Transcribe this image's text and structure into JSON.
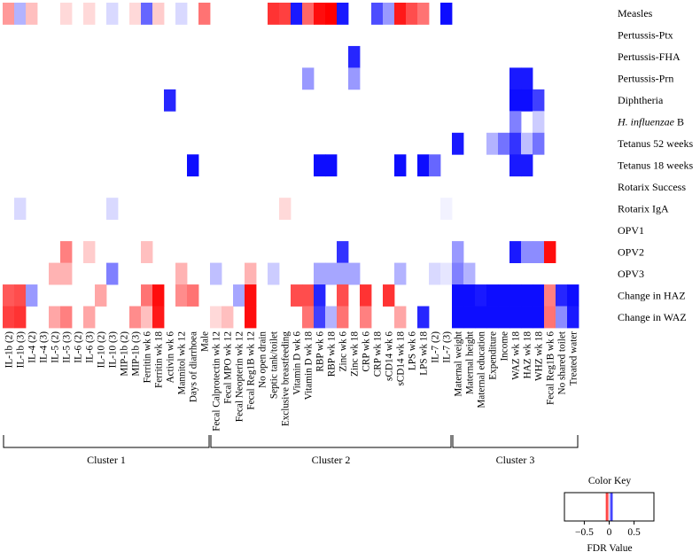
{
  "chart_data": {
    "type": "heatmap",
    "title": "",
    "rows": [
      "Measles",
      "Pertussis-Ptx",
      "Pertussis-FHA",
      "Pertussis-Prn",
      "Diphtheria",
      "H. influenzae B",
      "Tetanus 52 weeks",
      "Tetanus 18 weeks",
      "Rotarix Success",
      "Rotarix IgA",
      "OPV1",
      "OPV2",
      "OPV3",
      "Change in HAZ",
      "Change in WAZ"
    ],
    "row_labels": [
      {
        "text": "Measles",
        "italic": ""
      },
      {
        "text": "Pertussis-Ptx",
        "italic": ""
      },
      {
        "text": "Pertussis-FHA",
        "italic": ""
      },
      {
        "text": "Pertussis-Prn",
        "italic": ""
      },
      {
        "text": "Diphtheria",
        "italic": ""
      },
      {
        "text": " B",
        "italic": "H. influenzae"
      },
      {
        "text": "Tetanus 52 weeks",
        "italic": ""
      },
      {
        "text": "Tetanus 18 weeks",
        "italic": ""
      },
      {
        "text": "Rotarix Success",
        "italic": ""
      },
      {
        "text": "Rotarix IgA",
        "italic": ""
      },
      {
        "text": "OPV1",
        "italic": ""
      },
      {
        "text": "OPV2",
        "italic": ""
      },
      {
        "text": "OPV3",
        "italic": ""
      },
      {
        "text": "Change in HAZ",
        "italic": ""
      },
      {
        "text": "Change in WAZ",
        "italic": ""
      }
    ],
    "columns": [
      "IL-1b (2)",
      "IL-1b (3)",
      "IL-4 (2)",
      "IL-4 (3)",
      "IL-5 (2)",
      "IL-5 (3)",
      "IL-6 (2)",
      "IL-6 (3)",
      "IL-10 (2)",
      "IL-10 (3)",
      "MIP-1b (2)",
      "MIP-1b (3)",
      "Ferritin wk 6",
      "Ferritin wk 18",
      "Activin wk 6",
      "Mannitol wk 12",
      "Days of diarrhoea",
      "Male",
      "Fecal Calprotectin wk 12",
      "Fecal MPO wk 12",
      "Fecal Neopterin wk 12",
      "Fecal Reg1B wk 12",
      "No open drain",
      "Septic tank/toilet",
      "Exclusive breastfeeding",
      "Vitamin D wk 6",
      "Vitamin D wk 18",
      "RBP wk 6",
      "RBP wk 18",
      "Zinc wk 6",
      "Zinc wk 18",
      "CRP wk 6",
      "CRP wk 18",
      "sCD14 wk 6",
      "sCD14 wk 18",
      "LPS wk 6",
      "LPS wk 18",
      "IL-7 (2)",
      "IL-7 (3)",
      "Maternal weight",
      "Maternal height",
      "Maternal education",
      "Expenditure",
      "Income",
      "WAZ wk 18",
      "HAZ wk 18",
      "WHZ wk 18",
      "Fecal Reg1B wk 6",
      "No shared toilet",
      "Treated water"
    ],
    "clusters": [
      {
        "name": "Cluster 1",
        "start_col": 0,
        "end_col": 17
      },
      {
        "name": "Cluster 2",
        "start_col": 18,
        "end_col": 38
      },
      {
        "name": "Cluster 3",
        "start_col": 39,
        "end_col": 49
      }
    ],
    "value_scale": "FDR value, signed; negative = red, positive = blue, 0 = white",
    "values": [
      [
        -0.4,
        0.3,
        -0.25,
        0,
        0,
        -0.15,
        0,
        -0.15,
        0,
        0.15,
        0,
        -0.15,
        0.6,
        -0.2,
        0,
        0.15,
        0,
        -0.55,
        0,
        0,
        0,
        0,
        0,
        -0.8,
        -0.75,
        0.9,
        -0.6,
        -0.95,
        -1.0,
        0.9,
        0,
        0,
        0.7,
        0.4,
        -0.9,
        -0.7,
        -0.55,
        0,
        0.95,
        0,
        0,
        0,
        0,
        0,
        0,
        0,
        0,
        0,
        0,
        0
      ],
      [
        0,
        0,
        0,
        0,
        0,
        0,
        0,
        0,
        0,
        0,
        0,
        0,
        0,
        0,
        0,
        0,
        0,
        0,
        0,
        0,
        0,
        0,
        0,
        0,
        0,
        0,
        0,
        0,
        0,
        0,
        0,
        0,
        0,
        0,
        0,
        0,
        0,
        0,
        0,
        0,
        0,
        0,
        0,
        0,
        0,
        0,
        0,
        0,
        0,
        0
      ],
      [
        0,
        0,
        0,
        0,
        0,
        0,
        0,
        0,
        0,
        0,
        0,
        0,
        0,
        0,
        0,
        0,
        0,
        0,
        0,
        0,
        0,
        0,
        0,
        0,
        0,
        0,
        0,
        0,
        0,
        0,
        0.85,
        0,
        0,
        0,
        0,
        0,
        0,
        0,
        0,
        0,
        0,
        0,
        0,
        0,
        0,
        0,
        0,
        0,
        0,
        0
      ],
      [
        0,
        0,
        0,
        0,
        0,
        0,
        0,
        0,
        0,
        0,
        0,
        0,
        0,
        0,
        0,
        0,
        0,
        0,
        0,
        0,
        0,
        0,
        0,
        0,
        0,
        0,
        0.4,
        0,
        0,
        0,
        0.4,
        0,
        0,
        0,
        0,
        0,
        0,
        0,
        0,
        0,
        0,
        0,
        0,
        0,
        0.9,
        0.9,
        0,
        0,
        0,
        0
      ],
      [
        0,
        0,
        0,
        0,
        0,
        0,
        0,
        0,
        0,
        0,
        0,
        0,
        0,
        0,
        0.85,
        0,
        0,
        0,
        0,
        0,
        0,
        0,
        0,
        0,
        0,
        0,
        0,
        0,
        0,
        0,
        0,
        0,
        0,
        0,
        0,
        0,
        0,
        0,
        0,
        0,
        0,
        0,
        0,
        0,
        0.95,
        0.95,
        0.75,
        0,
        0,
        0
      ],
      [
        0,
        0,
        0,
        0,
        0,
        0,
        0,
        0,
        0,
        0,
        0,
        0,
        0,
        0,
        0,
        0,
        0,
        0,
        0,
        0,
        0,
        0,
        0,
        0,
        0,
        0,
        0,
        0,
        0,
        0,
        0,
        0,
        0,
        0,
        0,
        0,
        0,
        0,
        0,
        0,
        0,
        0,
        0,
        0,
        0.5,
        0,
        0.2,
        0,
        0,
        0
      ],
      [
        0,
        0,
        0,
        0,
        0,
        0,
        0,
        0,
        0,
        0,
        0,
        0,
        0,
        0,
        0,
        0,
        0,
        0,
        0,
        0,
        0,
        0,
        0,
        0,
        0,
        0,
        0,
        0,
        0,
        0,
        0,
        0,
        0,
        0,
        0,
        0,
        0,
        0,
        0,
        0.9,
        0,
        0,
        0.3,
        0.55,
        0.8,
        0.25,
        0.55,
        0,
        0,
        0
      ],
      [
        0,
        0,
        0,
        0,
        0,
        0,
        0,
        0,
        0,
        0,
        0,
        0,
        0,
        0,
        0,
        0,
        0.95,
        0,
        0,
        0,
        0,
        0,
        0,
        0,
        0,
        0,
        0,
        0.95,
        0.95,
        0,
        0,
        0,
        0,
        0,
        0.95,
        0,
        0.95,
        0.6,
        0,
        0,
        0,
        0,
        0,
        0,
        0.9,
        0.9,
        0,
        0,
        0,
        0
      ],
      [
        0,
        0,
        0,
        0,
        0,
        0,
        0,
        0,
        0,
        0,
        0,
        0,
        0,
        0,
        0,
        0,
        0,
        0,
        0,
        0,
        0,
        0,
        0,
        0,
        0,
        0,
        0,
        0,
        0,
        0,
        0,
        0,
        0,
        0,
        0,
        0,
        0,
        0,
        0,
        0,
        0,
        0,
        0,
        0,
        0,
        0,
        0,
        0,
        0,
        0
      ],
      [
        0,
        0.15,
        0,
        0,
        0,
        0,
        0,
        0,
        0,
        0.15,
        0,
        0,
        0,
        0,
        0,
        0,
        0,
        0,
        0,
        0,
        0,
        0,
        0,
        0,
        -0.15,
        0,
        0,
        0,
        0,
        0,
        0,
        0,
        0,
        0,
        0,
        0,
        0,
        0,
        0.05,
        0,
        0,
        0,
        0,
        0,
        0,
        0,
        0,
        0,
        0,
        0
      ],
      [
        0,
        0,
        0,
        0,
        0,
        0,
        0,
        0,
        0,
        0,
        0,
        0,
        0,
        0,
        0,
        0,
        0,
        0,
        0,
        0,
        0,
        0,
        0,
        0,
        0,
        0,
        0,
        0,
        0,
        0,
        0,
        0,
        0,
        0,
        0,
        0,
        0,
        0,
        0,
        0,
        0,
        0,
        0,
        0,
        0,
        0,
        0,
        0,
        0,
        0
      ],
      [
        0,
        0,
        0,
        0,
        0,
        -0.5,
        0,
        -0.2,
        0,
        0,
        0,
        0,
        -0.25,
        0,
        0,
        0,
        0,
        0,
        0,
        0,
        0,
        0,
        0,
        0,
        0,
        0,
        0,
        0,
        0,
        0.8,
        0,
        0,
        0,
        0,
        0,
        0,
        0,
        0,
        0,
        0.4,
        0,
        0,
        0,
        0,
        0.9,
        0.45,
        0.45,
        -0.95,
        0,
        0
      ],
      [
        0,
        0,
        0,
        0,
        -0.3,
        -0.3,
        0,
        0,
        0,
        0.5,
        0,
        0,
        0,
        0,
        0,
        -0.3,
        0,
        0,
        0.25,
        0,
        0,
        -0.3,
        0,
        0.2,
        0,
        0,
        0,
        0.35,
        0.35,
        0.35,
        0.35,
        0,
        0,
        0,
        0.3,
        0,
        0,
        0.15,
        0.1,
        0.5,
        0.3,
        0,
        0,
        0,
        0,
        0,
        0,
        0,
        0,
        0
      ],
      [
        -0.65,
        -0.7,
        0.4,
        0,
        0,
        0,
        0,
        0,
        -0.35,
        0,
        0,
        0,
        -0.55,
        -0.95,
        0,
        -0.45,
        -0.55,
        0,
        0,
        0,
        0.35,
        -0.95,
        0,
        0,
        0,
        -0.7,
        -0.7,
        0.85,
        0,
        -0.7,
        0,
        -0.8,
        0,
        -0.8,
        0,
        0,
        0,
        0,
        0,
        0.95,
        0.95,
        0.9,
        0.95,
        0.95,
        0.95,
        0.95,
        0.95,
        -0.5,
        0.85,
        0.95
      ],
      [
        -0.75,
        -0.8,
        0,
        0,
        -0.35,
        -0.5,
        0,
        -0.35,
        0,
        0,
        0,
        -0.45,
        -0.25,
        -0.9,
        0,
        0,
        0,
        0,
        -0.15,
        -0.25,
        0,
        -0.95,
        0,
        0,
        0,
        0,
        -0.55,
        0.75,
        0.3,
        -0.55,
        0,
        -0.5,
        0,
        0,
        -0.35,
        0,
        0.85,
        0,
        0,
        0.95,
        0.95,
        0.95,
        0.95,
        0.95,
        0.95,
        0.95,
        0.95,
        -0.55,
        0.45,
        0.9
      ]
    ],
    "color_key": {
      "title": "Color Key",
      "xlabel": "FDR Value",
      "ticks": [
        "−0.5",
        "0",
        "0.5"
      ],
      "tick_values": [
        -0.5,
        0,
        0.5
      ],
      "range": [
        -0.9,
        0.9
      ]
    },
    "colors": {
      "negative": "#ff0000",
      "zero": "#ffffff",
      "positive": "#0000ff"
    }
  }
}
